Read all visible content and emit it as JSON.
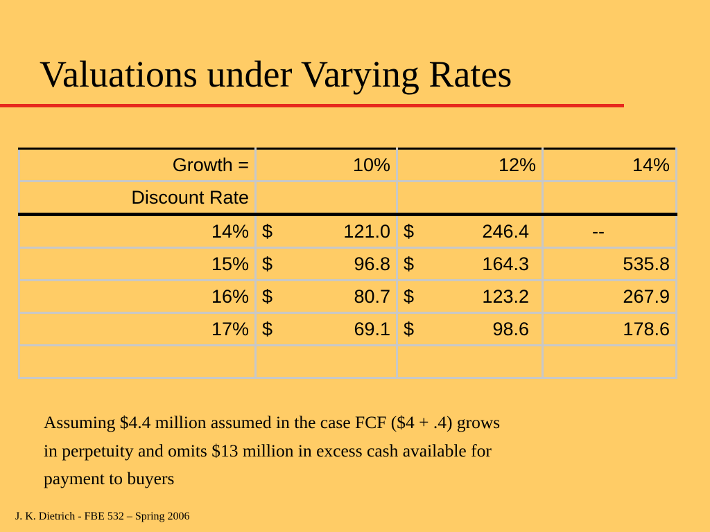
{
  "slide": {
    "title": "Valuations under Varying Rates",
    "accent_color": "#E8281E",
    "background_color": "#FFCC66"
  },
  "table": {
    "header_row1": {
      "label": "Growth =",
      "cols": [
        "10%",
        "12%",
        "14%"
      ]
    },
    "header_row2": {
      "label": "Discount Rate"
    },
    "rows": [
      {
        "rate": "14%",
        "c1_sym": "$",
        "c1": "121.0",
        "c2_sym": "$",
        "c2": "246.4",
        "c3": "--"
      },
      {
        "rate": "15%",
        "c1_sym": "$",
        "c1": "96.8",
        "c2_sym": "$",
        "c2": "164.3",
        "c3": "535.8"
      },
      {
        "rate": "16%",
        "c1_sym": "$",
        "c1": "80.7",
        "c2_sym": "$",
        "c2": "123.2",
        "c3": "267.9"
      },
      {
        "rate": "17%",
        "c1_sym": "$",
        "c1": "69.1",
        "c2_sym": "$",
        "c2": "98.6",
        "c3": "178.6"
      }
    ]
  },
  "note": {
    "line1": "Assuming $4.4 million assumed in the case FCF ($4 + .4) grows",
    "line2": "in perpetuity and omits $13 million in excess cash available for",
    "line3": "payment to buyers"
  },
  "footer": "J. K. Dietrich - FBE 532 – Spring 2006"
}
